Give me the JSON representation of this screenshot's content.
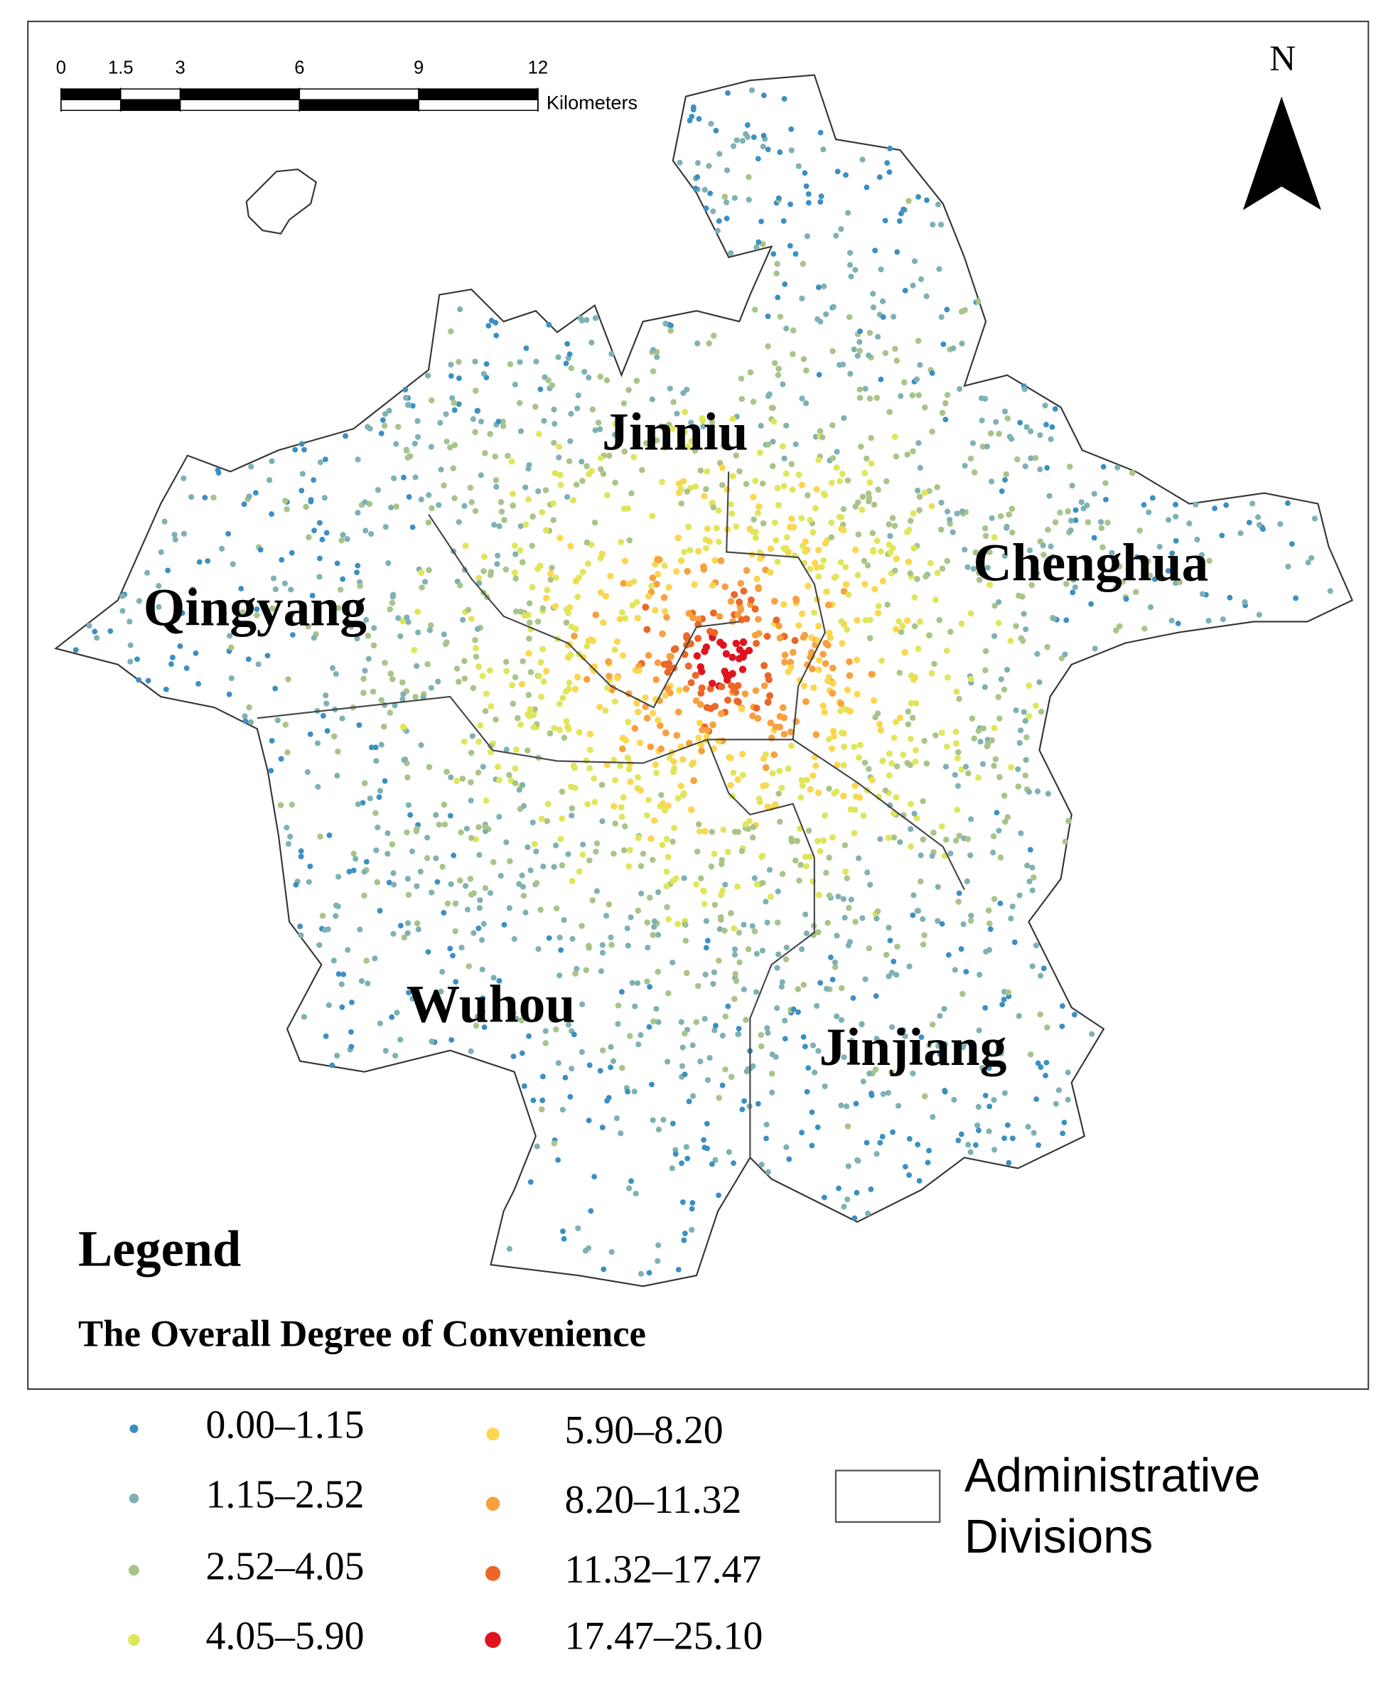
{
  "map": {
    "scale_bar": {
      "ticks": [
        0,
        1.5,
        3,
        6,
        9,
        12
      ],
      "unit": "Kilometers"
    },
    "north": "N",
    "districts": [
      "Jinniu",
      "Chenghua",
      "Qingyang",
      "Wuhou",
      "Jinjiang"
    ],
    "legend": {
      "title": "Legend",
      "subtitle": "The Overall Degree of Convenience",
      "classes": [
        {
          "label": "0.00–1.15",
          "color": "#3b8fc2"
        },
        {
          "label": "1.15–2.52",
          "color": "#7fb1b4"
        },
        {
          "label": "2.52–4.05",
          "color": "#a9c48a"
        },
        {
          "label": "4.05–5.90",
          "color": "#dfe65a"
        },
        {
          "label": "5.90–8.20",
          "color": "#fcd64e"
        },
        {
          "label": "8.20–11.32",
          "color": "#f8a03f"
        },
        {
          "label": "11.32–17.47",
          "color": "#ec6628"
        },
        {
          "label": "17.47–25.10",
          "color": "#e0141e"
        }
      ],
      "boundary_label_lines": [
        "Administrative",
        "Divisions"
      ]
    }
  }
}
